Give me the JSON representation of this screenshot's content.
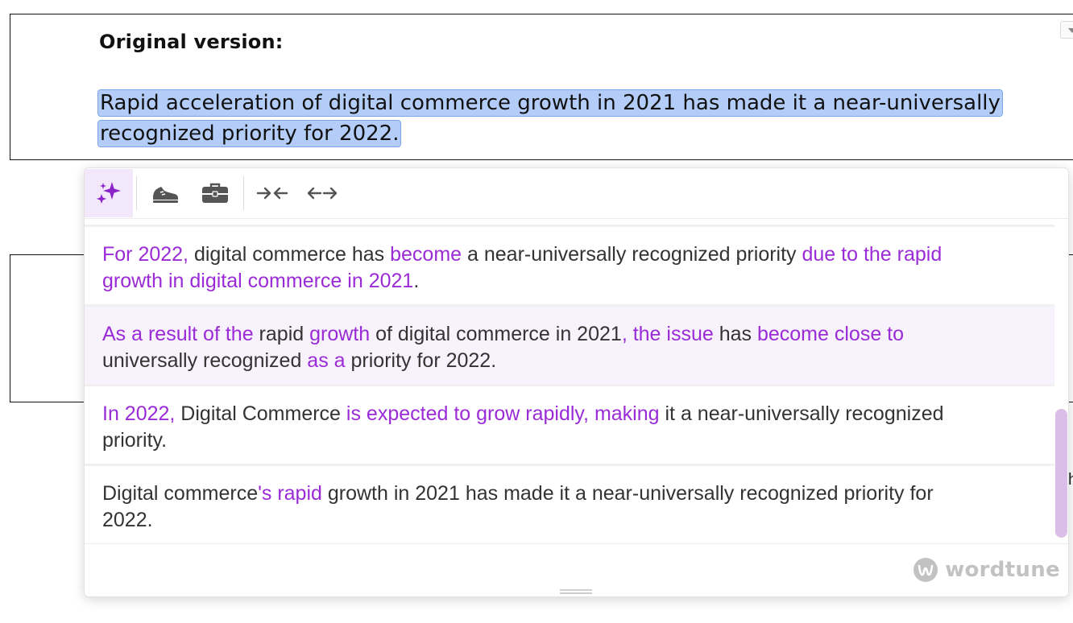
{
  "document": {
    "heading": "Original version:",
    "selected_text": "Rapid acceleration of digital commerce growth in 2021 has made it a near-universally recognized priority for 2022."
  },
  "wordtune": {
    "toolbar": {
      "buttons": [
        {
          "name": "rewrite",
          "icon": "sparkles-icon",
          "active": true
        },
        {
          "name": "casual",
          "icon": "sneaker-icon",
          "active": false
        },
        {
          "name": "formal",
          "icon": "briefcase-icon",
          "active": false
        },
        {
          "name": "shorten",
          "icon": "arrows-inward-icon",
          "active": false
        },
        {
          "name": "expand",
          "icon": "arrows-outward-icon",
          "active": false
        }
      ]
    },
    "suggestions": [
      {
        "segments": [
          {
            "text": "For 2022,",
            "changed": true
          },
          {
            "text": " digital commerce has ",
            "changed": false
          },
          {
            "text": "become",
            "changed": true
          },
          {
            "text": " a near-universally recognized priority ",
            "changed": false
          },
          {
            "text": "due to the rapid growth in digital commerce in 2021",
            "changed": true
          },
          {
            "text": ".",
            "changed": false
          }
        ]
      },
      {
        "segments": [
          {
            "text": "As a result of the",
            "changed": true
          },
          {
            "text": " rapid ",
            "changed": false
          },
          {
            "text": "growth",
            "changed": true
          },
          {
            "text": " of digital commerce in 2021",
            "changed": false
          },
          {
            "text": ", the issue",
            "changed": true
          },
          {
            "text": " has ",
            "changed": false
          },
          {
            "text": "become close to",
            "changed": true
          },
          {
            "text": " universally recognized ",
            "changed": false
          },
          {
            "text": "as a",
            "changed": true
          },
          {
            "text": " priority for 2022.",
            "changed": false
          }
        ]
      },
      {
        "segments": [
          {
            "text": "In 2022,",
            "changed": true
          },
          {
            "text": " Digital Commerce ",
            "changed": false
          },
          {
            "text": "is expected to grow rapidly, making",
            "changed": true
          },
          {
            "text": " it a near-universally recognized priority.",
            "changed": false
          }
        ]
      },
      {
        "segments": [
          {
            "text": "Digital commerce",
            "changed": false
          },
          {
            "text": "'s rapid",
            "changed": true
          },
          {
            "text": " growth in 2021 has made it a near-universally recognized priority for 2022.",
            "changed": false
          }
        ]
      }
    ],
    "hovered_index": 1,
    "brand": "wordtune",
    "colors": {
      "accent": "#9a2bd6",
      "text": "#333333",
      "highlight": "#b4cdf8",
      "active_button_bg": "#f3e8fb",
      "hover_bg": "#f8f2fc",
      "scroll_thumb": "#dbbdea",
      "brand_gray": "#c2c2c2"
    },
    "scroll_position": 0.58
  },
  "edge_char": "h"
}
